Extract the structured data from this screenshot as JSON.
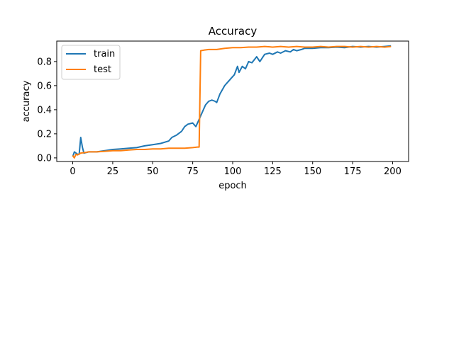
{
  "chart_data": {
    "type": "line",
    "title": "Accuracy",
    "xlabel": "epoch",
    "ylabel": "accuracy",
    "xlim": [
      -10,
      210
    ],
    "ylim": [
      -0.03,
      0.97
    ],
    "xticks": [
      0,
      25,
      50,
      75,
      100,
      125,
      150,
      175,
      200
    ],
    "yticks": [
      0.0,
      0.2,
      0.4,
      0.6,
      0.8
    ],
    "ytick_labels": [
      "0.0",
      "0.2",
      "0.4",
      "0.6",
      "0.8"
    ],
    "grid": false,
    "legend": {
      "placement": "upper-left",
      "entries": [
        "train",
        "test"
      ]
    },
    "series": [
      {
        "name": "train",
        "color": "#1f77b4",
        "points": [
          [
            0,
            0.01
          ],
          [
            1,
            0.05
          ],
          [
            2,
            0.04
          ],
          [
            3,
            0.03
          ],
          [
            4,
            0.03
          ],
          [
            5,
            0.17
          ],
          [
            6,
            0.09
          ],
          [
            7,
            0.04
          ],
          [
            10,
            0.05
          ],
          [
            15,
            0.05
          ],
          [
            20,
            0.06
          ],
          [
            25,
            0.07
          ],
          [
            30,
            0.075
          ],
          [
            35,
            0.08
          ],
          [
            40,
            0.085
          ],
          [
            45,
            0.1
          ],
          [
            50,
            0.11
          ],
          [
            55,
            0.12
          ],
          [
            60,
            0.14
          ],
          [
            62,
            0.17
          ],
          [
            65,
            0.19
          ],
          [
            68,
            0.22
          ],
          [
            70,
            0.26
          ],
          [
            72,
            0.28
          ],
          [
            75,
            0.29
          ],
          [
            77,
            0.26
          ],
          [
            79,
            0.32
          ],
          [
            81,
            0.38
          ],
          [
            83,
            0.44
          ],
          [
            85,
            0.47
          ],
          [
            87,
            0.48
          ],
          [
            89,
            0.47
          ],
          [
            90,
            0.46
          ],
          [
            92,
            0.53
          ],
          [
            95,
            0.6
          ],
          [
            97,
            0.63
          ],
          [
            99,
            0.66
          ],
          [
            101,
            0.69
          ],
          [
            103,
            0.76
          ],
          [
            104,
            0.71
          ],
          [
            106,
            0.76
          ],
          [
            108,
            0.74
          ],
          [
            110,
            0.8
          ],
          [
            112,
            0.79
          ],
          [
            115,
            0.84
          ],
          [
            117,
            0.8
          ],
          [
            120,
            0.86
          ],
          [
            123,
            0.87
          ],
          [
            125,
            0.86
          ],
          [
            128,
            0.88
          ],
          [
            130,
            0.87
          ],
          [
            133,
            0.89
          ],
          [
            136,
            0.88
          ],
          [
            138,
            0.9
          ],
          [
            140,
            0.89
          ],
          [
            143,
            0.9
          ],
          [
            145,
            0.91
          ],
          [
            150,
            0.91
          ],
          [
            155,
            0.915
          ],
          [
            160,
            0.915
          ],
          [
            165,
            0.92
          ],
          [
            170,
            0.915
          ],
          [
            175,
            0.925
          ],
          [
            180,
            0.92
          ],
          [
            185,
            0.925
          ],
          [
            190,
            0.92
          ],
          [
            195,
            0.925
          ],
          [
            199,
            0.93
          ]
        ]
      },
      {
        "name": "test",
        "color": "#ff7f0e",
        "points": [
          [
            0,
            0.02
          ],
          [
            1,
            0.0
          ],
          [
            2,
            0.03
          ],
          [
            3,
            0.025
          ],
          [
            5,
            0.04
          ],
          [
            8,
            0.045
          ],
          [
            10,
            0.05
          ],
          [
            15,
            0.05
          ],
          [
            20,
            0.055
          ],
          [
            25,
            0.06
          ],
          [
            30,
            0.06
          ],
          [
            35,
            0.065
          ],
          [
            40,
            0.07
          ],
          [
            45,
            0.07
          ],
          [
            50,
            0.075
          ],
          [
            55,
            0.075
          ],
          [
            60,
            0.08
          ],
          [
            65,
            0.08
          ],
          [
            70,
            0.08
          ],
          [
            75,
            0.085
          ],
          [
            78,
            0.09
          ],
          [
            79,
            0.09
          ],
          [
            80,
            0.89
          ],
          [
            82,
            0.895
          ],
          [
            85,
            0.9
          ],
          [
            90,
            0.9
          ],
          [
            95,
            0.91
          ],
          [
            100,
            0.915
          ],
          [
            105,
            0.915
          ],
          [
            110,
            0.92
          ],
          [
            115,
            0.92
          ],
          [
            120,
            0.925
          ],
          [
            125,
            0.92
          ],
          [
            130,
            0.925
          ],
          [
            135,
            0.92
          ],
          [
            140,
            0.925
          ],
          [
            145,
            0.92
          ],
          [
            150,
            0.92
          ],
          [
            155,
            0.925
          ],
          [
            160,
            0.92
          ],
          [
            165,
            0.925
          ],
          [
            170,
            0.925
          ],
          [
            175,
            0.92
          ],
          [
            180,
            0.925
          ],
          [
            185,
            0.92
          ],
          [
            190,
            0.925
          ],
          [
            195,
            0.92
          ],
          [
            199,
            0.925
          ]
        ]
      }
    ]
  }
}
